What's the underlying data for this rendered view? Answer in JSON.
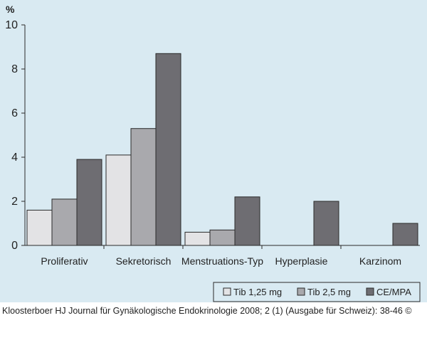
{
  "colors": {
    "background": "#d9eaf2",
    "series": [
      "#e3e3e5",
      "#a9a9ad",
      "#6e6d72"
    ],
    "outline": "#2a2a2a"
  },
  "credit_text": "Kloosterboer HJ Journal für Gynäkologische Endokrinologie 2008; 2 (1) (Ausgabe für Schweiz): 38-46 ©",
  "chart_data": {
    "type": "bar",
    "unit_label": "%",
    "ylim": [
      0,
      10
    ],
    "yticks": [
      0,
      2,
      4,
      6,
      8,
      10
    ],
    "categories": [
      "Proliferativ",
      "Sekretorisch",
      "Menstruations-Typ",
      "Hyperplasie",
      "Karzinom"
    ],
    "series": [
      {
        "name": "Tib 1,25 mg",
        "values": [
          1.6,
          4.1,
          0.6,
          0,
          0
        ]
      },
      {
        "name": "Tib 2,5 mg",
        "values": [
          2.1,
          5.3,
          0.7,
          0,
          0
        ]
      },
      {
        "name": "CE/MPA",
        "values": [
          3.9,
          8.7,
          2.2,
          2.0,
          1.0
        ]
      }
    ],
    "legend_position": "bottom-right",
    "grid": false
  }
}
